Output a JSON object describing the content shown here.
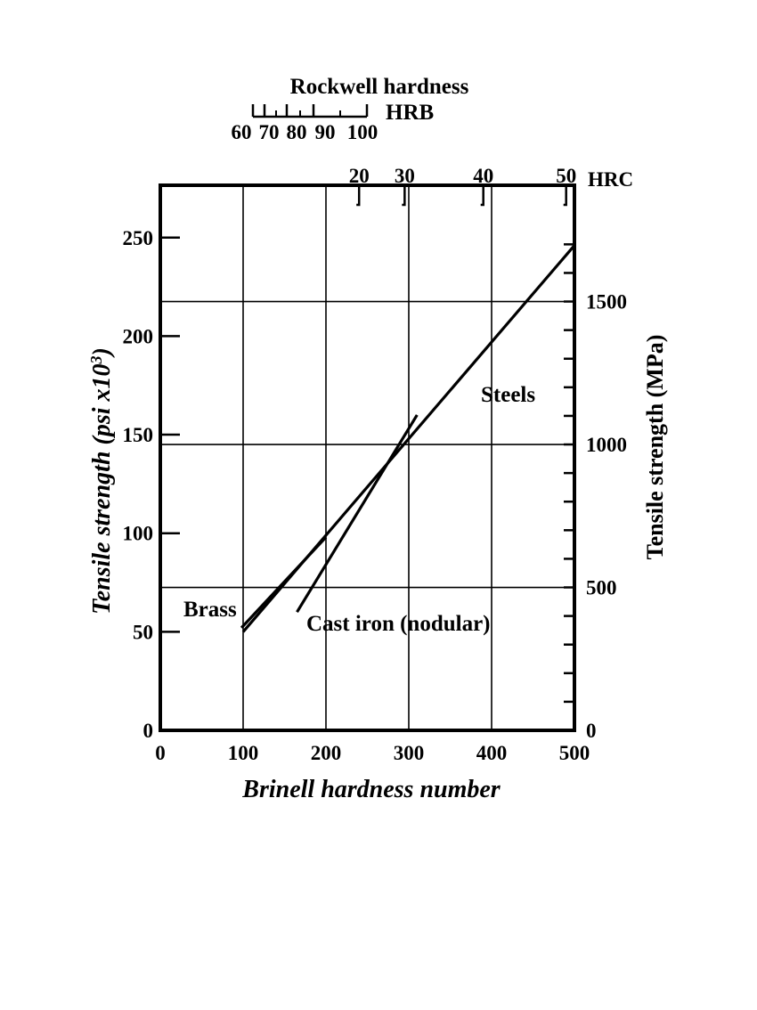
{
  "chart_data": {
    "type": "line",
    "x_label": "Brinell hardness number",
    "x_ticks": [
      0,
      100,
      200,
      300,
      400,
      500
    ],
    "xlim": [
      0,
      500
    ],
    "y_left_label": "Tensile strength (psi x10",
    "y_left_label_sup": "3",
    "y_left_label_close": ")",
    "y_left_ticks": [
      0,
      50,
      100,
      150,
      200,
      250
    ],
    "y_left_lim": [
      0,
      275
    ],
    "y_right_label": "Tensile strength (MPa)",
    "y_right_ticks": [
      0,
      500,
      1000,
      1500
    ],
    "hrc_label": "HRC",
    "hrc_ticks": [
      {
        "label": "20",
        "brinell": 240
      },
      {
        "label": "30",
        "brinell": 295
      },
      {
        "label": "40",
        "brinell": 390
      },
      {
        "label": "50",
        "brinell": 490
      }
    ],
    "hrb_title": "Rockwell  hardness",
    "hrb_label": "HRB",
    "hrb_ticks": [
      {
        "label": "60",
        "brinell": 112
      },
      {
        "label": "70",
        "brinell": 125
      },
      {
        "label": "80",
        "brinell": 150
      },
      {
        "label": "90",
        "brinell": 180
      },
      {
        "label": "100",
        "brinell": 240
      }
    ],
    "gridlines": {
      "vertical_brinell": [
        100,
        200,
        300,
        400
      ],
      "horizontal_mpa": [
        500,
        1000,
        1500
      ]
    },
    "series": [
      {
        "name": "Steels",
        "points": [
          [
            100,
            50
          ],
          [
            500,
            246
          ]
        ]
      },
      {
        "name": "Brass",
        "points": [
          [
            98,
            52
          ],
          [
            200,
            98
          ]
        ]
      },
      {
        "name": "Cast iron (nodular)",
        "points": [
          [
            165,
            60
          ],
          [
            310,
            160
          ]
        ]
      }
    ]
  }
}
